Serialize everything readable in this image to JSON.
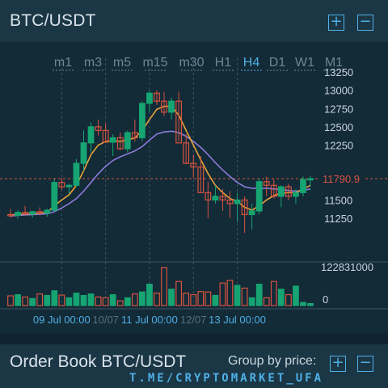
{
  "header": {
    "title": "BTC/USDT",
    "zoom_in": "+",
    "zoom_out": "−"
  },
  "timeframes": [
    {
      "label": "m1",
      "active": false
    },
    {
      "label": "m3",
      "active": false
    },
    {
      "label": "m5",
      "active": false
    },
    {
      "label": "m15",
      "active": false
    },
    {
      "label": "m30",
      "active": false
    },
    {
      "label": "H1",
      "active": false
    },
    {
      "label": "H4",
      "active": true
    },
    {
      "label": "D1",
      "active": false
    },
    {
      "label": "W1",
      "active": false
    },
    {
      "label": "M1",
      "active": false
    }
  ],
  "chart_data": {
    "type": "candlestick",
    "price_ticks": [
      "13250",
      "13000",
      "12750",
      "12500",
      "12250",
      "11500",
      "11250"
    ],
    "tick_values": [
      13250,
      13000,
      12750,
      12500,
      12250,
      11500,
      11250
    ],
    "current_price": "11790.9",
    "current_price_value": 11790.9,
    "ylim": [
      11000,
      13300
    ],
    "volume_max_label": "122831000",
    "volume_zero_label": "0",
    "date_labels": [
      {
        "text": "09 Jul 00:00",
        "idx": 7,
        "highlight": true
      },
      {
        "text": "10/07",
        "idx": 13,
        "highlight": false
      },
      {
        "text": "11 Jul 00:00",
        "idx": 19,
        "highlight": true
      },
      {
        "text": "12/07",
        "idx": 25,
        "highlight": false
      },
      {
        "text": "13 Jul 00:00",
        "idx": 31,
        "highlight": true
      }
    ],
    "candles": [
      [
        11300,
        11380,
        11260,
        11290
      ],
      [
        11290,
        11360,
        11240,
        11330
      ],
      [
        11330,
        11420,
        11290,
        11310
      ],
      [
        11310,
        11350,
        11260,
        11340
      ],
      [
        11340,
        11400,
        11290,
        11320
      ],
      [
        11320,
        11380,
        11270,
        11360
      ],
      [
        11360,
        11790,
        11340,
        11740
      ],
      [
        11740,
        11800,
        11640,
        11680
      ],
      [
        11680,
        11720,
        11580,
        11700
      ],
      [
        11700,
        12060,
        11680,
        12000
      ],
      [
        12000,
        12450,
        11900,
        12280
      ],
      [
        12280,
        12560,
        12150,
        12500
      ],
      [
        12500,
        12600,
        12380,
        12450
      ],
      [
        12450,
        12550,
        12280,
        12290
      ],
      [
        12290,
        12400,
        12100,
        12350
      ],
      [
        12350,
        12420,
        12180,
        12200
      ],
      [
        12200,
        12450,
        12150,
        12420
      ],
      [
        12420,
        12600,
        12300,
        12350
      ],
      [
        12350,
        12850,
        12300,
        12820
      ],
      [
        12820,
        13000,
        12700,
        12960
      ],
      [
        12960,
        13000,
        12800,
        12850
      ],
      [
        12850,
        12980,
        12650,
        12700
      ],
      [
        12700,
        12900,
        12600,
        12850
      ],
      [
        12850,
        12980,
        12300,
        12280
      ],
      [
        12280,
        12400,
        12000,
        12000
      ],
      [
        12000,
        12120,
        11800,
        11950
      ],
      [
        11950,
        12100,
        11600,
        11600
      ],
      [
        11600,
        11750,
        11250,
        11500
      ],
      [
        11500,
        11700,
        11450,
        11550
      ],
      [
        11550,
        11650,
        11350,
        11500
      ],
      [
        11500,
        11620,
        11250,
        11450
      ],
      [
        11450,
        11600,
        11200,
        11500
      ],
      [
        11500,
        11550,
        11050,
        11300
      ],
      [
        11300,
        11450,
        11100,
        11350
      ],
      [
        11350,
        11800,
        11300,
        11750
      ],
      [
        11750,
        11820,
        11550,
        11700
      ],
      [
        11700,
        11780,
        11520,
        11550
      ],
      [
        11550,
        11700,
        11400,
        11680
      ],
      [
        11680,
        11720,
        11500,
        11550
      ],
      [
        11550,
        11650,
        11450,
        11600
      ],
      [
        11600,
        11820,
        11550,
        11780
      ],
      [
        11780,
        11830,
        11690,
        11790.9
      ]
    ],
    "ma_fast": [
      11300,
      11300,
      11310,
      11310,
      11320,
      11330,
      11420,
      11500,
      11570,
      11700,
      11900,
      12120,
      12250,
      12300,
      12310,
      12300,
      12320,
      12350,
      12450,
      12600,
      12740,
      12780,
      12780,
      12660,
      12450,
      12250,
      12050,
      11860,
      11700,
      11600,
      11520,
      11480,
      11400,
      11360,
      11420,
      11500,
      11560,
      11590,
      11600,
      11600,
      11650,
      11700
    ],
    "ma_slow": [
      11280,
      11290,
      11295,
      11300,
      11305,
      11310,
      11340,
      11390,
      11450,
      11520,
      11620,
      11740,
      11860,
      11960,
      12040,
      12090,
      12130,
      12170,
      12230,
      12320,
      12400,
      12430,
      12440,
      12420,
      12370,
      12300,
      12220,
      12120,
      12010,
      11910,
      11820,
      11740,
      11680,
      11660,
      11660,
      11660,
      11650,
      11640,
      11630,
      11620,
      11630,
      11650
    ],
    "volumes": [
      0.25,
      0.28,
      0.22,
      0.18,
      0.3,
      0.26,
      0.38,
      0.27,
      0.2,
      0.32,
      0.26,
      0.3,
      0.22,
      0.2,
      0.28,
      0.12,
      0.2,
      0.3,
      0.35,
      0.55,
      0.32,
      0.98,
      0.42,
      0.62,
      0.32,
      0.28,
      0.36,
      0.35,
      0.26,
      0.58,
      0.65,
      0.52,
      0.45,
      0.2,
      0.55,
      0.2,
      0.62,
      0.42,
      0.28,
      0.5,
      0.08,
      0.05
    ]
  },
  "orderbook": {
    "title": "Order Book BTC/USDT",
    "group_label": "Group by price:",
    "plus": "+",
    "minus": "−"
  },
  "watermark": "T.ME/CRYPTOMARKET_UFA",
  "colors": {
    "up": "#16a472",
    "down": "#d8543f",
    "ma_fast": "#e6a33a",
    "ma_slow": "#8b7bd8",
    "accent": "#4fb0e6",
    "price_line": "#d8543f"
  }
}
